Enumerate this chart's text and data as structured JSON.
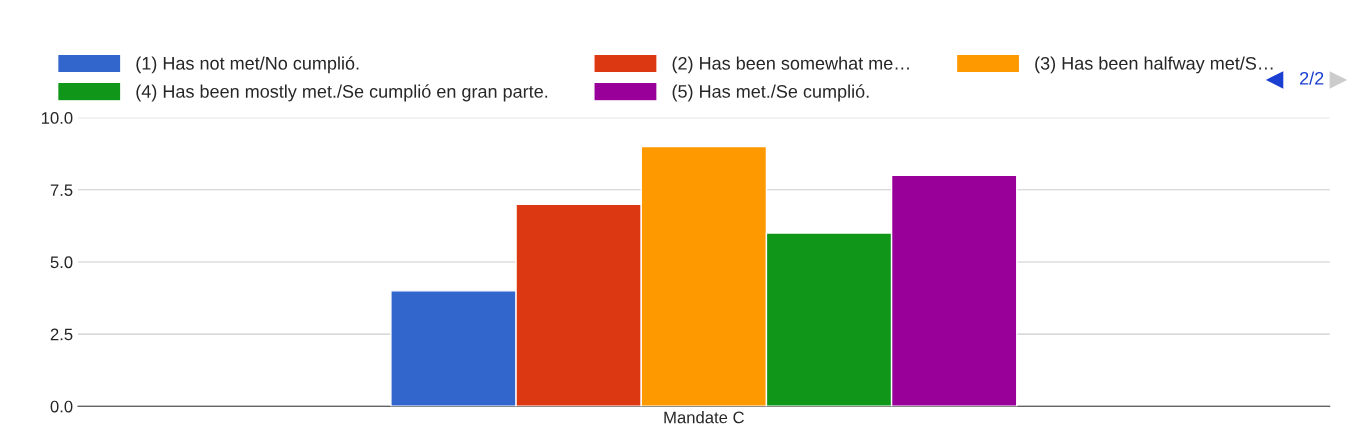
{
  "chart_data": {
    "type": "bar",
    "categories": [
      "Mandate C"
    ],
    "series": [
      {
        "name": "(1) Has not met/No cumplió.",
        "color": "#3366cc",
        "values": [
          4
        ]
      },
      {
        "name": "(2) Has been somewhat me…",
        "color": "#dc3912",
        "values": [
          7
        ]
      },
      {
        "name": "(3) Has been halfway met/S…",
        "color": "#ff9900",
        "values": [
          9
        ]
      },
      {
        "name": "(4) Has been mostly met./Se cumplió en gran parte.",
        "color": "#109618",
        "values": [
          6
        ]
      },
      {
        "name": "(5) Has met./Se cumplió.",
        "color": "#990099",
        "values": [
          8
        ]
      }
    ],
    "ylim": [
      0,
      10
    ],
    "yticks": [
      {
        "value": 0,
        "label": "0.0"
      },
      {
        "value": 2.5,
        "label": "2.5"
      },
      {
        "value": 5,
        "label": "5.0"
      },
      {
        "value": 7.5,
        "label": "7.5"
      },
      {
        "value": 10,
        "label": "10.0"
      }
    ],
    "grid": "y",
    "legend": "top",
    "annotations": [
      "2/2"
    ]
  }
}
